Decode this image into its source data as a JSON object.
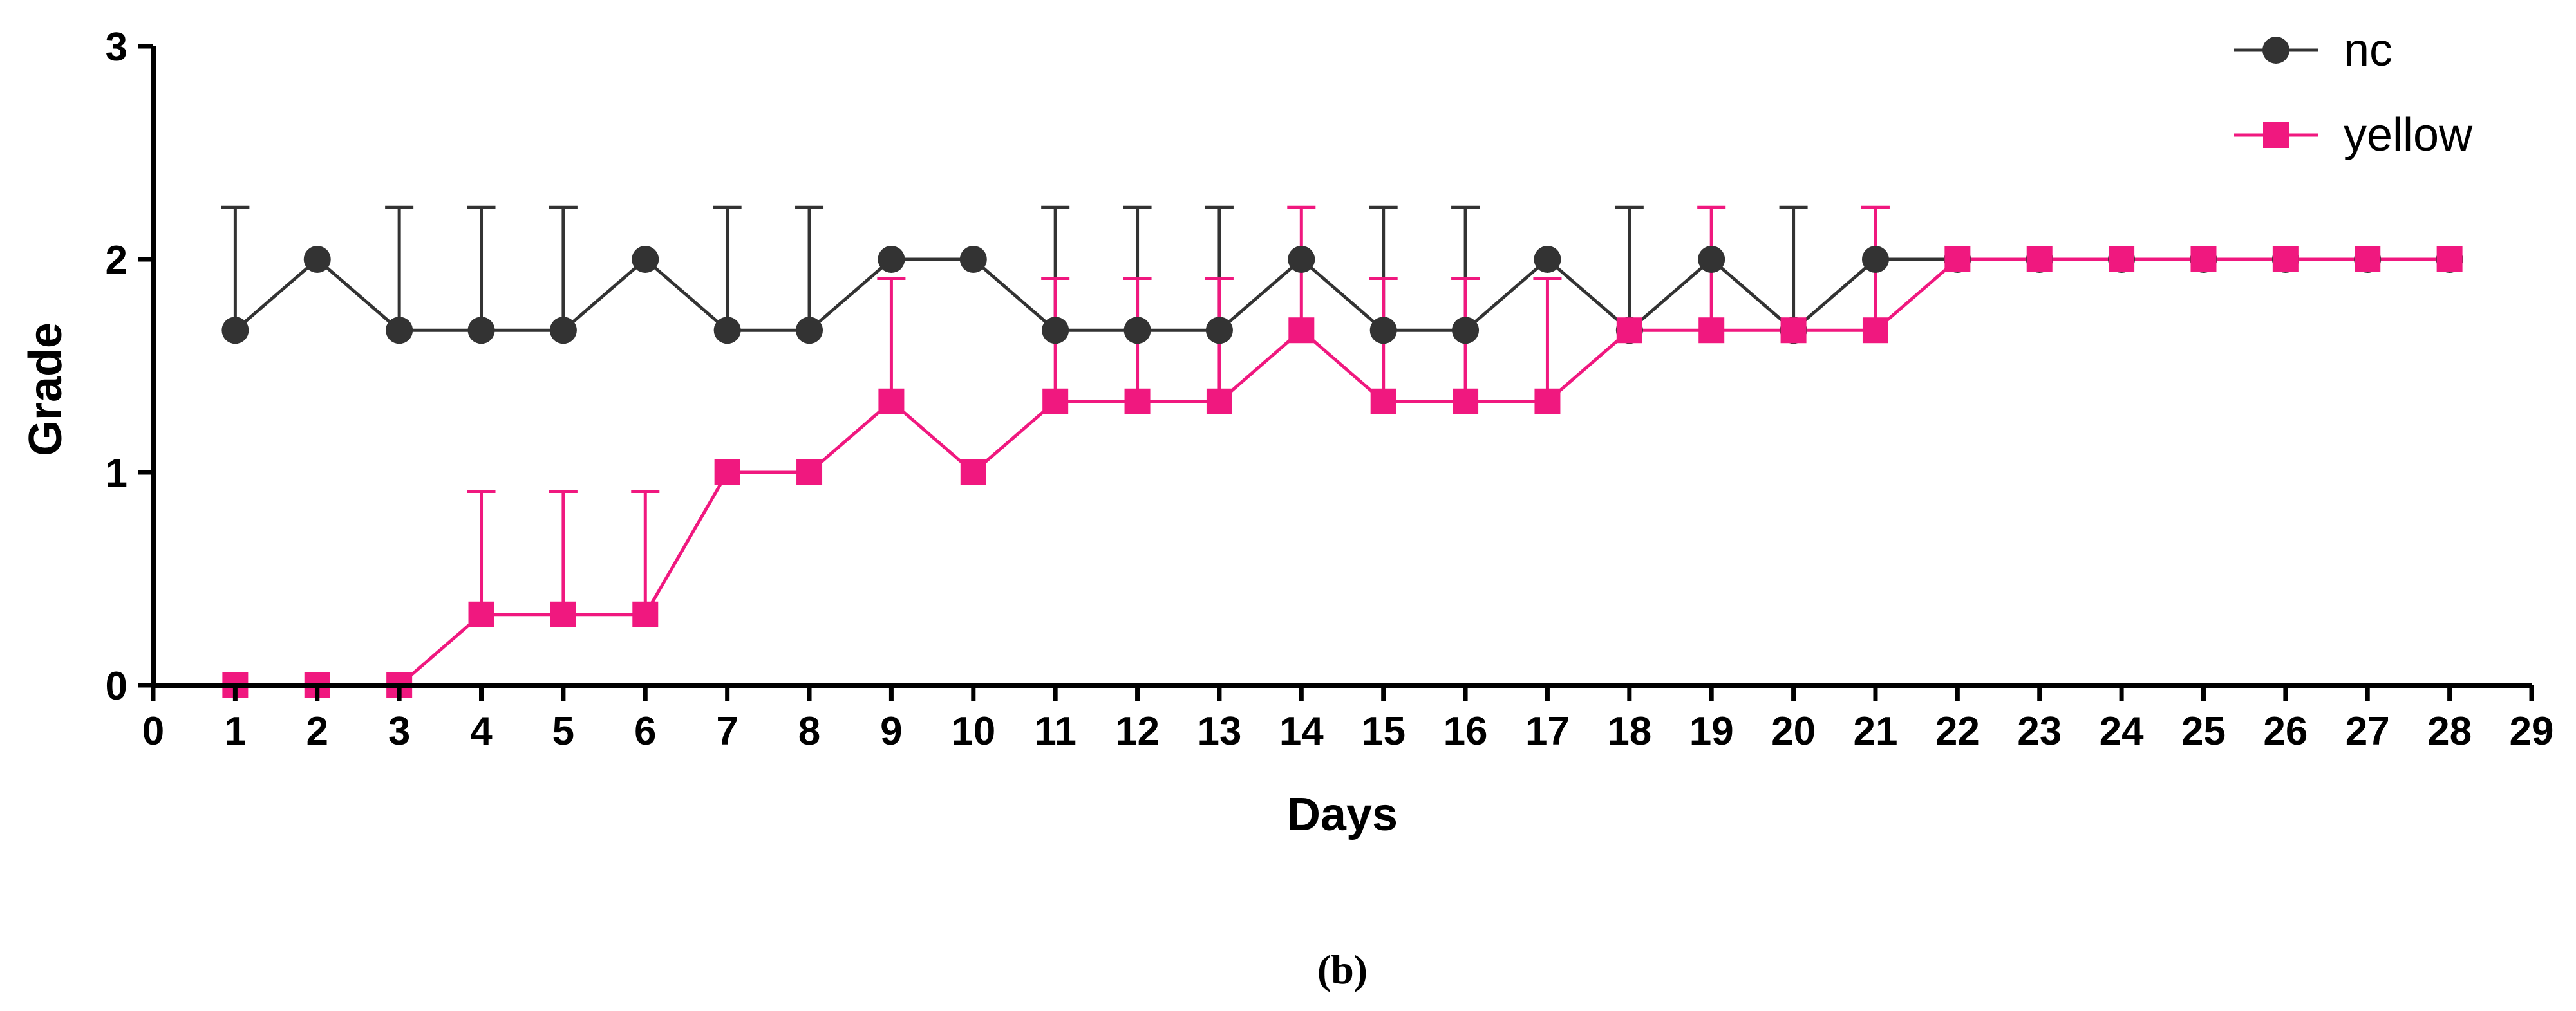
{
  "chart_data": {
    "type": "line",
    "title": "",
    "xlabel": "Days",
    "ylabel": "Grade",
    "xlim": [
      0,
      29
    ],
    "ylim": [
      0,
      3
    ],
    "xticks": [
      0,
      1,
      2,
      3,
      4,
      5,
      6,
      7,
      8,
      9,
      10,
      11,
      12,
      13,
      14,
      15,
      16,
      17,
      18,
      19,
      20,
      21,
      22,
      23,
      24,
      25,
      26,
      27,
      28,
      29
    ],
    "yticks": [
      0,
      1,
      2,
      3
    ],
    "x": [
      1,
      2,
      3,
      4,
      5,
      6,
      7,
      8,
      9,
      10,
      11,
      12,
      13,
      14,
      15,
      16,
      17,
      18,
      19,
      20,
      21,
      22,
      23,
      24,
      25,
      26,
      27,
      28
    ],
    "legend_position": "top-right",
    "series": [
      {
        "name": "nc",
        "color": "#333333",
        "marker": "circle",
        "values": [
          1.667,
          2,
          1.667,
          1.667,
          1.667,
          2,
          1.667,
          1.667,
          2,
          2,
          1.667,
          1.667,
          1.667,
          2,
          1.667,
          1.667,
          2,
          1.667,
          2,
          1.667,
          2,
          2,
          2,
          2,
          2,
          2,
          2,
          2
        ],
        "error_upper": [
          2.244,
          null,
          2.244,
          2.244,
          2.244,
          null,
          2.244,
          2.244,
          null,
          null,
          2.244,
          2.244,
          2.244,
          null,
          2.244,
          2.244,
          null,
          2.244,
          null,
          2.244,
          null,
          null,
          null,
          null,
          null,
          null,
          null,
          null
        ]
      },
      {
        "name": "yellow",
        "color": "#f0187f",
        "marker": "square",
        "values": [
          0,
          0,
          0,
          0.333,
          0.333,
          0.333,
          1,
          1,
          1.333,
          1,
          1.333,
          1.333,
          1.333,
          1.667,
          1.333,
          1.333,
          1.333,
          1.667,
          1.667,
          1.667,
          1.667,
          2,
          2,
          2,
          2,
          2,
          2,
          2
        ],
        "error_upper": [
          null,
          null,
          null,
          0.911,
          0.911,
          0.911,
          null,
          null,
          1.911,
          null,
          1.911,
          1.911,
          1.911,
          2.244,
          1.911,
          1.911,
          1.911,
          null,
          2.244,
          null,
          2.244,
          null,
          null,
          null,
          null,
          null,
          null,
          null
        ]
      }
    ]
  },
  "caption": "(b)"
}
